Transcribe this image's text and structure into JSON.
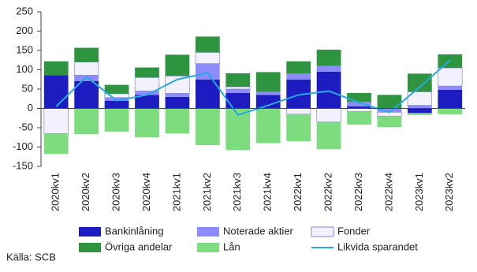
{
  "chart_data": {
    "type": "stacked-bar-line",
    "categories": [
      "2020kv1",
      "2020kv2",
      "2020kv3",
      "2020kv4",
      "2021kv1",
      "2021kv2",
      "2021kv3",
      "2021kv4",
      "2022kv1",
      "2022kv2",
      "2022kv3",
      "2022kv4",
      "2023kv1",
      "2023kv2"
    ],
    "series": [
      {
        "name": "Bankinlåning",
        "color": "#1c1cc0",
        "values": [
          86,
          71,
          20,
          35,
          30,
          75,
          40,
          35,
          75,
          95,
          5,
          0,
          -12,
          48
        ]
      },
      {
        "name": "Noterade aktier",
        "color": "#8c8cff",
        "values": [
          0,
          15,
          8,
          10,
          9,
          41,
          10,
          8,
          15,
          15,
          12,
          -10,
          8,
          10
        ]
      },
      {
        "name": "Fonder",
        "color": "#f3f0ff",
        "values": [
          -65,
          34,
          10,
          35,
          45,
          29,
          6,
          0,
          -15,
          -35,
          -8,
          -10,
          35,
          47
        ]
      },
      {
        "name": "Övriga andelar",
        "color": "#2e9440",
        "values": [
          36,
          37,
          23,
          26,
          55,
          41,
          35,
          51,
          32,
          42,
          23,
          35,
          47,
          35
        ]
      },
      {
        "name": "Lån",
        "color": "#7ddc7d",
        "values": [
          -53,
          -67,
          -60,
          -75,
          -65,
          -95,
          -108,
          -90,
          -70,
          -70,
          -34,
          -28,
          -5,
          -15
        ]
      },
      {
        "name": "Likvida sparandet",
        "color": "#27a9e1",
        "kind": "line",
        "values": [
          5,
          82,
          20,
          35,
          75,
          92,
          -17,
          8,
          35,
          45,
          15,
          -10,
          55,
          125
        ]
      }
    ],
    "ylim": [
      -150,
      250
    ],
    "yticks": [
      -150,
      -100,
      -50,
      0,
      50,
      100,
      150,
      200,
      250
    ],
    "grid": false,
    "source": "Källa: SCB"
  }
}
